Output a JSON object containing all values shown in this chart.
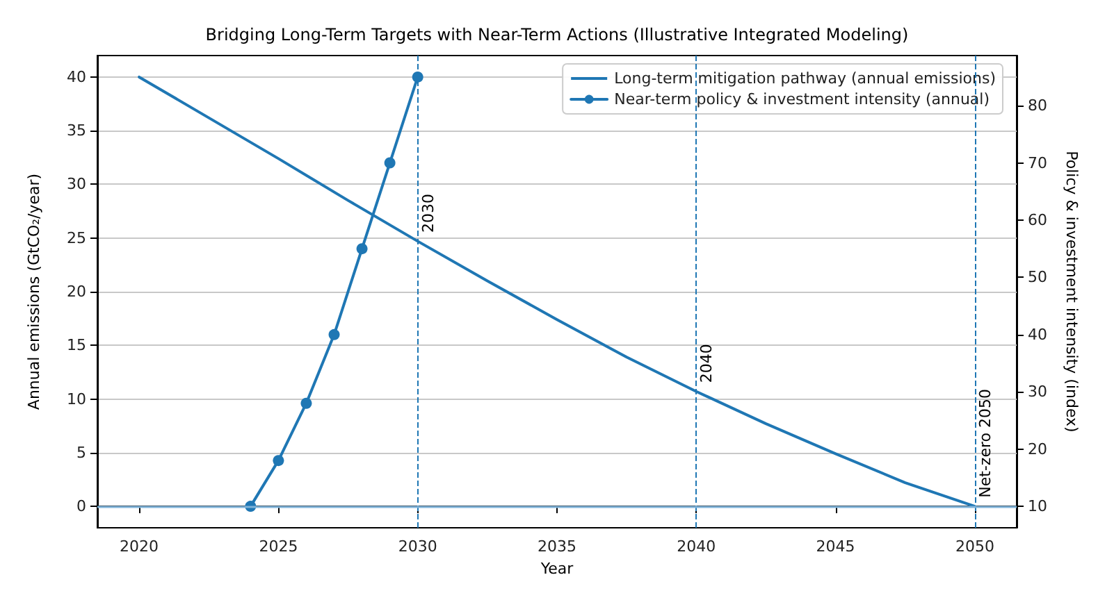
{
  "chart_data": {
    "type": "line",
    "title": "Bridging Long-Term Targets with Near-Term Actions (Illustrative Integrated Modeling)",
    "xlabel": "Year",
    "ylabel": "Annual emissions (GtCO₂/year)",
    "y2label": "Policy & investment intensity (index)",
    "series": [
      {
        "name": "Long-term mitigation pathway (annual emissions)",
        "color": "#1f77b4",
        "marker": "none",
        "x": [
          2020,
          2022.5,
          2025,
          2027.5,
          2030,
          2032.5,
          2035,
          2037.5,
          2040,
          2042.5,
          2045,
          2047.5,
          2050
        ],
        "values": [
          40,
          36.2,
          32.4,
          28.5,
          24.7,
          21,
          17.4,
          13.9,
          10.7,
          7.7,
          4.9,
          2.2,
          0
        ]
      },
      {
        "name": "Near-term policy & investment intensity (annual)",
        "color": "#1f77b4",
        "marker": "circle",
        "axis": "y2",
        "x": [
          2024,
          2025,
          2026,
          2027,
          2028,
          2029,
          2030
        ],
        "values": [
          10,
          18,
          28,
          40,
          55,
          70,
          85
        ]
      }
    ],
    "xlim": [
      2018.5,
      2051.5
    ],
    "xticks": [
      2020,
      2025,
      2030,
      2035,
      2040,
      2045,
      2050
    ],
    "ylim": [
      -2,
      42
    ],
    "yticks": [
      0,
      5,
      10,
      15,
      20,
      25,
      30,
      35,
      40
    ],
    "y2lim": [
      6.25,
      88.75
    ],
    "y2ticks": [
      10,
      20,
      30,
      40,
      50,
      60,
      70,
      80
    ],
    "ref_lines": [
      {
        "axis": "y",
        "value": 0,
        "color": "#7fb3d9",
        "line_style": "solid"
      },
      {
        "axis": "x",
        "value": 2030,
        "color": "#1f77b4",
        "line_style": "dashed"
      },
      {
        "axis": "x",
        "value": 2040,
        "color": "#1f77b4",
        "line_style": "dashed"
      },
      {
        "axis": "x",
        "value": 2050,
        "color": "#1f77b4",
        "line_style": "dashed"
      }
    ],
    "annotations": [
      {
        "text": "2030",
        "x": 2030,
        "y": 25.5
      },
      {
        "text": "2040",
        "x": 2040,
        "y": 11.5
      },
      {
        "text": "Net-zero 2050",
        "x": 2050,
        "y": 0.8
      }
    ],
    "grid": "y",
    "legend": "top right"
  }
}
